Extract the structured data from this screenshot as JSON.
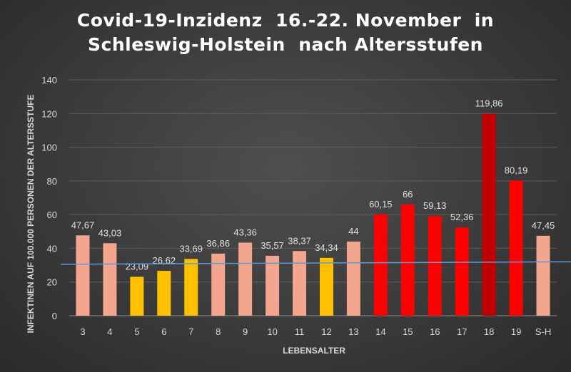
{
  "chart_data": {
    "type": "bar",
    "title_lines": [
      "Covid-19-Inzidenz  16.-22. November  in",
      "Schleswig-Holstein  nach Altersstufen"
    ],
    "xlabel": "LEBENSALTER",
    "ylabel": "INFEKTINEN AUF 100.000 PERSONEN DER ALTERSSTUFE",
    "ylim": [
      0,
      140
    ],
    "yticks": [
      "0",
      "20",
      "40",
      "60",
      "80",
      "100",
      "120",
      "140"
    ],
    "grid": true,
    "categories": [
      "3",
      "4",
      "5",
      "6",
      "7",
      "8",
      "9",
      "10",
      "11",
      "12",
      "13",
      "14",
      "15",
      "16",
      "17",
      "18",
      "19",
      "S-H"
    ],
    "values": [
      47.67,
      43.03,
      23.09,
      26.62,
      33.69,
      36.86,
      43.36,
      35.57,
      38.37,
      34.34,
      44,
      60.15,
      66,
      59.13,
      52.36,
      119.86,
      80.19,
      47.45
    ],
    "value_labels": [
      "47,67",
      "43,03",
      "23,09",
      "26,62",
      "33,69",
      "36,86",
      "43,36",
      "35,57",
      "38,37",
      "34,34",
      "44",
      "60,15",
      "66",
      "59,13",
      "52,36",
      "119,86",
      "80,19",
      "47,45"
    ],
    "bar_colors": [
      "#f4a58d",
      "#f4a58d",
      "#ffc000",
      "#ffc000",
      "#ffc000",
      "#f4a58d",
      "#f4a58d",
      "#f4a58d",
      "#f4a58d",
      "#ffc000",
      "#f4a58d",
      "#ff0000",
      "#ff0000",
      "#ff0000",
      "#ff0000",
      "#c00000",
      "#ff0000",
      "#f4a58d"
    ],
    "reference_line": {
      "from": 30.5,
      "to": 32,
      "color": "#5b9bd5"
    }
  }
}
